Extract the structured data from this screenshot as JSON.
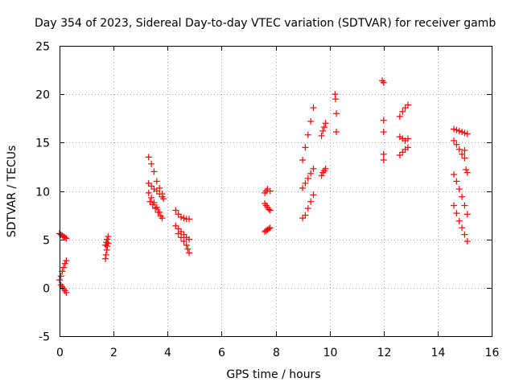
{
  "chart_data": {
    "type": "scatter",
    "title": "Day 354 of 2023, Sidereal Day-to-day VTEC variation (SDTVAR) for receiver gamb",
    "xlabel": "GPS time / hours",
    "ylabel": "SDTVAR / TECUs",
    "xlim": [
      0,
      16
    ],
    "ylim": [
      -5,
      25
    ],
    "xticks": [
      0,
      2,
      4,
      6,
      8,
      10,
      12,
      14,
      16
    ],
    "yticks": [
      -5,
      0,
      5,
      10,
      15,
      20,
      25
    ],
    "grid": true,
    "marker": "+",
    "color": "#ff0000",
    "series": [
      {
        "name": "seg-0a",
        "x": [
          0.0,
          0.05,
          0.1,
          0.15,
          0.2,
          0.25
        ],
        "y": [
          0.8,
          1.2,
          1.7,
          2.1,
          2.5,
          2.8
        ]
      },
      {
        "name": "seg-0b",
        "x": [
          0.05,
          0.1,
          0.15,
          0.2,
          0.25
        ],
        "y": [
          0.3,
          0.1,
          -0.1,
          -0.3,
          -0.5
        ]
      },
      {
        "name": "seg-0c",
        "x": [
          0.0,
          0.05,
          0.1,
          0.15,
          0.2,
          0.25
        ],
        "y": [
          5.6,
          5.5,
          5.4,
          5.3,
          5.2,
          5.1
        ]
      },
      {
        "name": "seg-1a",
        "x": [
          1.7,
          1.72,
          1.75,
          1.77,
          1.8
        ],
        "y": [
          3.0,
          3.4,
          3.9,
          4.3,
          4.6
        ]
      },
      {
        "name": "seg-1b",
        "x": [
          1.7,
          1.73,
          1.76,
          1.8
        ],
        "y": [
          4.4,
          4.7,
          5.0,
          5.3
        ]
      },
      {
        "name": "seg-2a",
        "x": [
          3.3,
          3.4,
          3.5,
          3.6,
          3.7,
          3.8,
          3.85
        ],
        "y": [
          13.5,
          12.8,
          12.0,
          11.0,
          10.3,
          9.7,
          9.2
        ]
      },
      {
        "name": "seg-2b",
        "x": [
          3.3,
          3.4,
          3.5,
          3.6,
          3.7,
          3.8
        ],
        "y": [
          10.8,
          10.5,
          10.2,
          10.0,
          9.7,
          9.4
        ]
      },
      {
        "name": "seg-2c",
        "x": [
          3.3,
          3.4,
          3.5,
          3.6,
          3.7,
          3.8
        ],
        "y": [
          9.8,
          9.3,
          8.8,
          8.3,
          7.8,
          7.2
        ]
      },
      {
        "name": "seg-2d",
        "x": [
          3.35,
          3.45,
          3.55,
          3.65,
          3.75
        ],
        "y": [
          8.9,
          8.6,
          8.2,
          7.8,
          7.4
        ]
      },
      {
        "name": "seg-3a",
        "x": [
          4.3,
          4.4,
          4.5,
          4.6,
          4.7,
          4.8
        ],
        "y": [
          8.0,
          7.6,
          7.3,
          7.2,
          7.1,
          7.1
        ]
      },
      {
        "name": "seg-3b",
        "x": [
          4.3,
          4.4,
          4.5,
          4.6,
          4.7,
          4.8
        ],
        "y": [
          6.4,
          6.1,
          5.8,
          5.5,
          5.2,
          5.0
        ]
      },
      {
        "name": "seg-3c",
        "x": [
          4.4,
          4.5,
          4.6,
          4.7,
          4.75,
          4.8
        ],
        "y": [
          5.6,
          5.2,
          4.8,
          4.4,
          4.0,
          3.6
        ]
      },
      {
        "name": "seg-4a",
        "x": [
          7.6,
          7.65,
          7.7,
          7.8
        ],
        "y": [
          9.8,
          10.0,
          10.2,
          10.0
        ]
      },
      {
        "name": "seg-4b",
        "x": [
          7.6,
          7.65,
          7.7,
          7.75,
          7.8
        ],
        "y": [
          8.7,
          8.5,
          8.3,
          8.1,
          8.0
        ]
      },
      {
        "name": "seg-4c",
        "x": [
          7.6,
          7.65,
          7.7,
          7.75,
          7.8
        ],
        "y": [
          5.8,
          5.9,
          6.0,
          6.1,
          6.2
        ]
      },
      {
        "name": "seg-5a",
        "x": [
          9.0,
          9.1,
          9.2,
          9.3,
          9.4
        ],
        "y": [
          13.2,
          14.5,
          15.8,
          17.2,
          18.6
        ]
      },
      {
        "name": "seg-5b",
        "x": [
          9.0,
          9.1,
          9.2,
          9.3,
          9.4
        ],
        "y": [
          10.3,
          10.8,
          11.3,
          11.8,
          12.3
        ]
      },
      {
        "name": "seg-5c",
        "x": [
          9.0,
          9.1,
          9.2,
          9.3,
          9.4
        ],
        "y": [
          7.2,
          7.5,
          8.2,
          8.9,
          9.6
        ]
      },
      {
        "name": "seg-6a",
        "x": [
          9.7,
          9.75,
          9.8,
          9.85
        ],
        "y": [
          15.7,
          16.2,
          16.6,
          17.0
        ]
      },
      {
        "name": "seg-6b",
        "x": [
          9.7,
          9.75,
          9.8,
          9.85
        ],
        "y": [
          11.6,
          11.9,
          12.1,
          12.3
        ]
      },
      {
        "name": "seg-7",
        "x": [
          10.2,
          10.22,
          10.25,
          10.25
        ],
        "y": [
          20.0,
          19.5,
          18.0,
          16.1
        ]
      },
      {
        "name": "seg-8",
        "x": [
          11.95,
          12.0,
          12.0,
          12.0,
          12.0,
          12.0
        ],
        "y": [
          21.4,
          21.2,
          17.3,
          16.1,
          13.8,
          13.2
        ]
      },
      {
        "name": "seg-9a",
        "x": [
          12.6,
          12.7,
          12.8,
          12.9
        ],
        "y": [
          17.7,
          18.2,
          18.6,
          18.9
        ]
      },
      {
        "name": "seg-9b",
        "x": [
          12.6,
          12.7,
          12.8,
          12.9
        ],
        "y": [
          15.6,
          15.4,
          15.2,
          15.4
        ]
      },
      {
        "name": "seg-9c",
        "x": [
          12.6,
          12.7,
          12.8,
          12.9
        ],
        "y": [
          13.7,
          14.0,
          14.3,
          14.5
        ]
      },
      {
        "name": "seg-10a",
        "x": [
          14.6,
          14.7,
          14.8,
          14.9,
          15.0,
          15.1
        ],
        "y": [
          16.4,
          16.3,
          16.2,
          16.1,
          16.0,
          15.9
        ]
      },
      {
        "name": "seg-10b",
        "x": [
          14.6,
          14.7,
          14.8,
          14.9,
          15.0
        ],
        "y": [
          15.2,
          14.8,
          14.3,
          13.8,
          13.4
        ]
      },
      {
        "name": "seg-10c",
        "x": [
          14.6,
          14.7,
          14.8,
          14.9,
          15.0,
          15.1
        ],
        "y": [
          11.7,
          11.0,
          10.2,
          9.4,
          8.5,
          7.6
        ]
      },
      {
        "name": "seg-10d",
        "x": [
          14.6,
          14.7,
          14.8,
          14.9,
          15.0,
          15.1
        ],
        "y": [
          8.5,
          7.7,
          6.9,
          6.2,
          5.5,
          4.8
        ]
      },
      {
        "name": "seg-10e",
        "x": [
          15.0,
          15.05,
          15.1
        ],
        "y": [
          14.2,
          12.2,
          11.9
        ]
      }
    ]
  }
}
